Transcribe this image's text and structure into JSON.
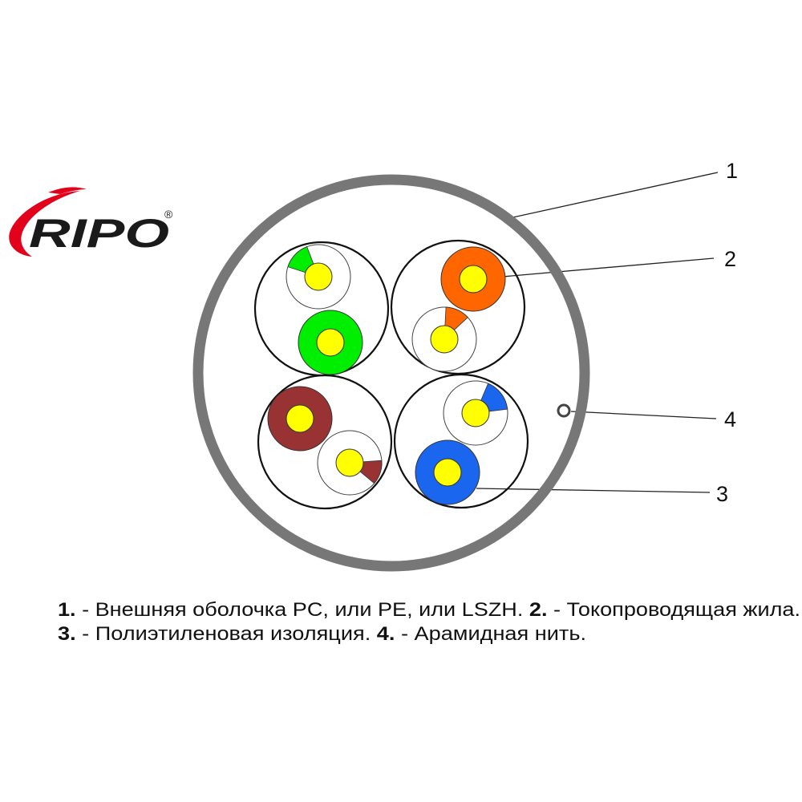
{
  "logo": {
    "text": "RIPO",
    "registered_mark": "®",
    "swoosh_color": "#e3001b",
    "text_color": "#1a1a1a"
  },
  "colors": {
    "jacket": "#777777",
    "conductor": "#ffff00",
    "green": "#00ee00",
    "orange": "#ff6600",
    "brown": "#993333",
    "blue": "#1a66ee",
    "outline": "#111111"
  },
  "callouts": [
    "1",
    "2",
    "3",
    "4"
  ],
  "legend": {
    "line1": [
      {
        "num": "1.",
        "text": " - Внешняя оболочка PC, или PE, или LSZH. "
      },
      {
        "num": "2.",
        "text": " - Токопроводящая жила."
      }
    ],
    "line2": [
      {
        "num": "3.",
        "text": " - Полиэтиленовая изоляция. "
      },
      {
        "num": "4.",
        "text": " - Арамидная нить."
      }
    ]
  }
}
